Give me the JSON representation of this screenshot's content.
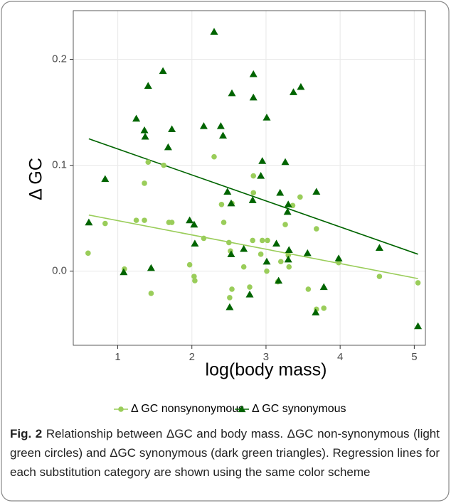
{
  "chart_data": {
    "type": "scatter",
    "xlabel": "log(body mass)",
    "ylabel": "Δ GC",
    "xlim": [
      0.4,
      5.15
    ],
    "ylim": [
      -0.07,
      0.246
    ],
    "xticks": [
      1,
      2,
      3,
      4,
      5
    ],
    "yticks": [
      {
        "value": 0,
        "label": "0.0"
      },
      0.1,
      0.2
    ],
    "grid": true,
    "series": [
      {
        "name": "Δ GC nonsynonymous",
        "color": "#9acd5a",
        "marker": "circle",
        "x": [
          0.6,
          1.09,
          0.83,
          1.25,
          1.36,
          1.36,
          1.41,
          1.45,
          1.62,
          1.69,
          1.73,
          2.16,
          1.97,
          2.03,
          2.04,
          2.3,
          2.4,
          2.43,
          2.5,
          2.52,
          2.51,
          2.54,
          2.54,
          2.7,
          2.78,
          2.82,
          2.83,
          2.83,
          2.93,
          2.95,
          3.02,
          3.01,
          3.16,
          3.2,
          3.26,
          3.3,
          3.31,
          3.36,
          3.46,
          3.57,
          3.68,
          3.68,
          3.78,
          3.98,
          4.53,
          5.05
        ],
        "values": [
          0.017,
          0.002,
          0.045,
          0.048,
          0.048,
          0.083,
          0.103,
          -0.021,
          0.1,
          0.046,
          0.046,
          0.031,
          0.006,
          -0.005,
          -0.009,
          0.108,
          0.063,
          0.046,
          0.027,
          0.019,
          -0.025,
          -0.017,
          0.064,
          0.004,
          -0.015,
          0.029,
          0.074,
          0.09,
          0.016,
          0.029,
          0.029,
          0.0,
          -0.01,
          0.009,
          0.044,
          0.015,
          0.004,
          0.062,
          0.07,
          -0.017,
          0.04,
          -0.036,
          -0.035,
          0.008,
          -0.005,
          -0.011
        ],
        "fit_x": [
          0.61,
          5.05
        ],
        "fit_y": [
          0.053,
          -0.007
        ]
      },
      {
        "name": "Δ GC synonymous",
        "color": "#006400",
        "marker": "triangle",
        "x": [
          0.61,
          0.83,
          1.08,
          1.25,
          1.36,
          1.37,
          1.41,
          1.45,
          1.61,
          1.68,
          1.73,
          1.97,
          2.03,
          2.04,
          2.16,
          2.3,
          2.39,
          2.42,
          2.48,
          2.53,
          2.53,
          2.51,
          2.54,
          2.7,
          2.78,
          2.82,
          2.83,
          2.83,
          2.93,
          2.95,
          3.01,
          3.01,
          3.14,
          3.17,
          3.19,
          3.26,
          3.29,
          3.3,
          3.31,
          3.3,
          3.37,
          3.47,
          3.56,
          3.68,
          3.67,
          3.78,
          3.98,
          4.53,
          5.05
        ],
        "values": [
          0.046,
          0.087,
          -0.001,
          0.144,
          0.133,
          0.127,
          0.175,
          0.003,
          0.189,
          0.117,
          0.134,
          0.048,
          0.044,
          0.026,
          0.137,
          0.226,
          0.137,
          0.128,
          0.075,
          0.064,
          0.016,
          -0.034,
          0.168,
          0.021,
          -0.022,
          0.067,
          0.186,
          0.164,
          0.09,
          0.104,
          0.145,
          0.009,
          0.026,
          -0.009,
          0.074,
          0.103,
          0.056,
          0.063,
          0.02,
          0.011,
          0.169,
          0.174,
          0.017,
          0.075,
          -0.039,
          -0.015,
          0.012,
          0.022,
          -0.052
        ],
        "fit_x": [
          0.61,
          5.05
        ],
        "fit_y": [
          0.125,
          0.016
        ]
      }
    ]
  },
  "caption_label": "Fig. 2",
  "caption": "Relationship between ΔGC and body mass. ΔGC non-synonymous (light green circles) and ΔGC synonymous (dark green triangles). Regression lines for each substitution category are shown using the same color scheme"
}
